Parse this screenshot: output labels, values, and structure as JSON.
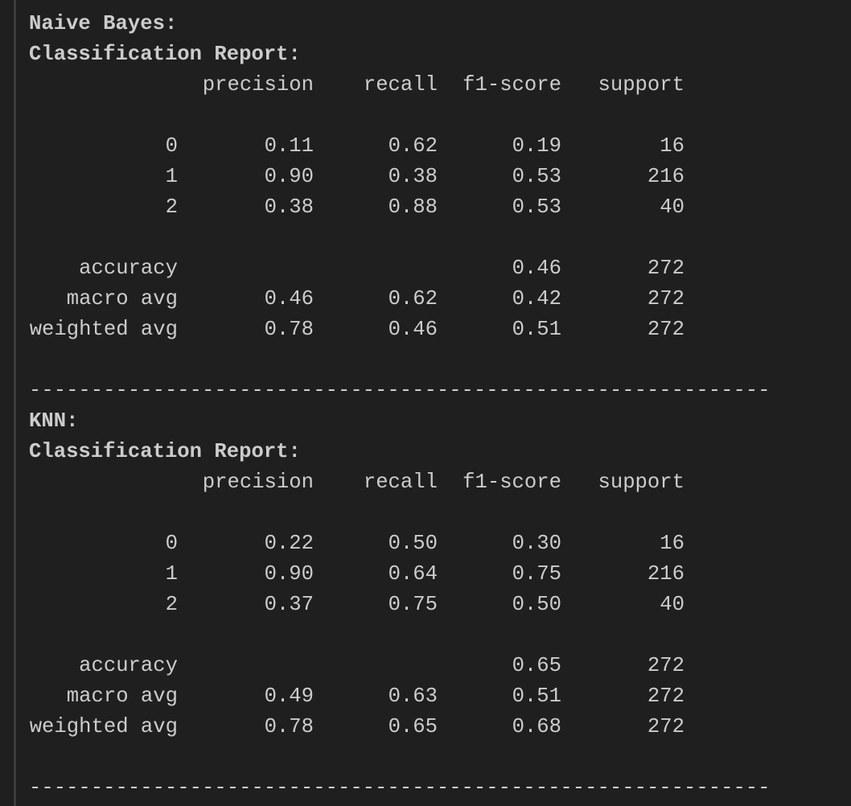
{
  "reports": [
    {
      "model": "Naive Bayes:",
      "heading": "Classification Report:",
      "columns": [
        "precision",
        "recall",
        "f1-score",
        "support"
      ],
      "rows": [
        {
          "label": "0",
          "values": [
            "0.11",
            "0.62",
            "0.19",
            16
          ]
        },
        {
          "label": "1",
          "values": [
            "0.90",
            "0.38",
            "0.53",
            216
          ]
        },
        {
          "label": "2",
          "values": [
            "0.38",
            "0.88",
            "0.53",
            40
          ]
        }
      ],
      "summary": [
        {
          "label": "accuracy",
          "values": [
            null,
            null,
            "0.46",
            272
          ]
        },
        {
          "label": "macro avg",
          "values": [
            "0.46",
            "0.62",
            "0.42",
            272
          ]
        },
        {
          "label": "weighted avg",
          "values": [
            "0.78",
            "0.46",
            "0.51",
            272
          ]
        }
      ],
      "separator": "------------------------------------------------------------"
    },
    {
      "model": "KNN:",
      "heading": "Classification Report:",
      "columns": [
        "precision",
        "recall",
        "f1-score",
        "support"
      ],
      "rows": [
        {
          "label": "0",
          "values": [
            "0.22",
            "0.50",
            "0.30",
            16
          ]
        },
        {
          "label": "1",
          "values": [
            "0.90",
            "0.64",
            "0.75",
            216
          ]
        },
        {
          "label": "2",
          "values": [
            "0.37",
            "0.75",
            "0.50",
            40
          ]
        }
      ],
      "summary": [
        {
          "label": "accuracy",
          "values": [
            null,
            null,
            "0.65",
            272
          ]
        },
        {
          "label": "macro avg",
          "values": [
            "0.49",
            "0.63",
            "0.51",
            272
          ]
        },
        {
          "label": "weighted avg",
          "values": [
            "0.78",
            "0.65",
            "0.68",
            272
          ]
        }
      ],
      "separator": "------------------------------------------------------------"
    }
  ]
}
